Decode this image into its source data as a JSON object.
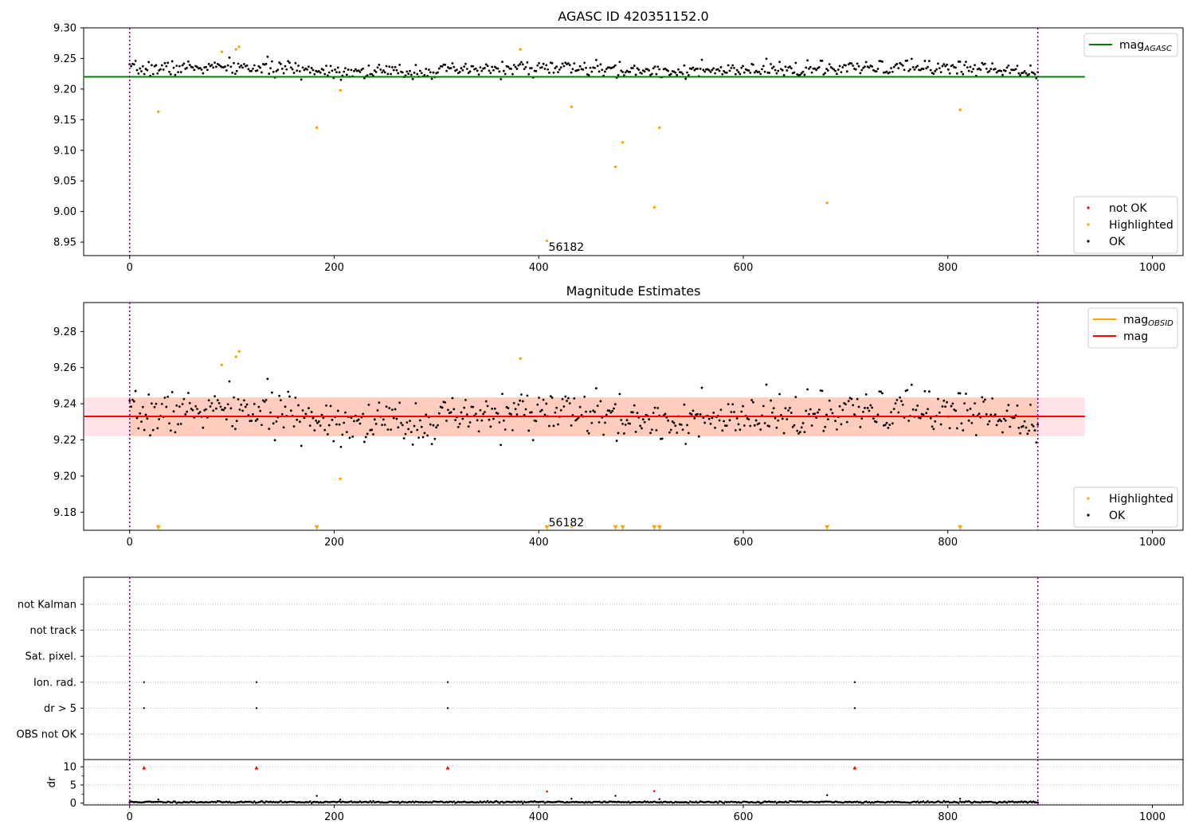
{
  "chart_data": [
    {
      "type": "scatter",
      "title": "AGASC ID 420351152.0",
      "xlim": [
        -45,
        1030
      ],
      "ylim": [
        8.928,
        9.3
      ],
      "x_ticks": [
        0,
        200,
        400,
        600,
        800,
        1000
      ],
      "y_ticks": [
        8.95,
        9.0,
        9.05,
        9.1,
        9.15,
        9.2,
        9.25,
        9.3
      ],
      "y_tick_labels": [
        "8.95",
        "9.00",
        "9.05",
        "9.10",
        "9.15",
        "9.20",
        "9.25",
        "9.30"
      ],
      "vlines": [
        0,
        888
      ],
      "hline": {
        "name": "mag",
        "name_sub": "AGASC",
        "y": 9.22,
        "x_range": [
          -45,
          934
        ],
        "color": "#008000"
      },
      "annotation": {
        "text": "56182",
        "x": 427,
        "y": 8.942
      },
      "legend_top": [
        {
          "label": "mag",
          "sub": "AGASC",
          "style": "line",
          "color": "#008000"
        }
      ],
      "legend_bottom": [
        {
          "label": "not OK",
          "style": "dot",
          "color": "#ff0000"
        },
        {
          "label": "Highlighted",
          "style": "dot",
          "color": "#ffa500"
        },
        {
          "label": "OK",
          "style": "dot",
          "color": "#000000"
        }
      ],
      "ok_series": {
        "x_start": 0,
        "x_end": 888,
        "n": 620,
        "baseline": 9.232,
        "noise": 0.0085,
        "color": "#000000"
      },
      "highlighted": {
        "color": "#ffa500",
        "points": [
          [
            28,
            9.163
          ],
          [
            90,
            9.261
          ],
          [
            104,
            9.265
          ],
          [
            107,
            9.269
          ],
          [
            183,
            9.137
          ],
          [
            206,
            9.198
          ],
          [
            382,
            9.265
          ],
          [
            408,
            8.952
          ],
          [
            432,
            9.171
          ],
          [
            475,
            9.073
          ],
          [
            482,
            9.113
          ],
          [
            513,
            9.007
          ],
          [
            518,
            9.137
          ],
          [
            682,
            9.014
          ],
          [
            812,
            9.166
          ]
        ]
      }
    },
    {
      "type": "scatter",
      "title": "Magnitude Estimates",
      "xlim": [
        -45,
        1030
      ],
      "ylim": [
        9.17,
        9.296
      ],
      "x_ticks": [
        0,
        200,
        400,
        600,
        800,
        1000
      ],
      "y_ticks": [
        9.18,
        9.2,
        9.22,
        9.24,
        9.26,
        9.28
      ],
      "y_tick_labels": [
        "9.18",
        "9.20",
        "9.22",
        "9.24",
        "9.26",
        "9.28"
      ],
      "vlines": [
        0,
        888
      ],
      "band_outer": {
        "y": [
          9.222,
          9.2435
        ],
        "x_range": [
          -45,
          934
        ]
      },
      "band_inner": {
        "y": [
          9.222,
          9.2435
        ],
        "x_range": [
          0,
          888
        ]
      },
      "mean_line": {
        "y": 9.233,
        "x_range": [
          -45,
          934
        ],
        "color": "#ff0000"
      },
      "annotation": {
        "text": "56182",
        "x": 427,
        "y": 9.1745
      },
      "markers_bottom": {
        "y": 9.1715,
        "x": [
          28,
          183,
          408,
          432,
          475,
          482,
          513,
          518,
          682,
          812
        ],
        "small": [
          432
        ],
        "color": "#ffa500"
      },
      "legend_top": [
        {
          "label": "mag",
          "sub": "OBSID",
          "style": "line",
          "color": "#ffa500"
        },
        {
          "label": "mag",
          "style": "line",
          "color": "#ff0000"
        }
      ],
      "legend_bottom": [
        {
          "label": "Highlighted",
          "style": "dot",
          "color": "#ffa500"
        },
        {
          "label": "OK",
          "style": "dot",
          "color": "#000000"
        }
      ],
      "ok_series": {
        "x_start": 0,
        "x_end": 888,
        "n": 620,
        "baseline": 9.233,
        "noise": 0.0085,
        "color": "#000000"
      },
      "highlighted": {
        "color": "#ffa500",
        "points": [
          [
            90,
            9.2615
          ],
          [
            104,
            9.266
          ],
          [
            107,
            9.269
          ],
          [
            206,
            9.1985
          ],
          [
            382,
            9.265
          ]
        ]
      }
    },
    {
      "type": "scatter",
      "title": "",
      "xlim": [
        -45,
        1030
      ],
      "flag_rows": [
        "not Kalman",
        "not track",
        "Sat. pixel.",
        "Ion. rad.",
        "dr > 5",
        "OBS not OK"
      ],
      "flag_points": {
        "Ion. rad.": [
          14,
          124,
          311,
          709
        ],
        "dr > 5": [
          14,
          124,
          311,
          709
        ]
      },
      "vlines": [
        0,
        888
      ]
    },
    {
      "type": "scatter",
      "title": "",
      "ylabel": "dr",
      "xlim": [
        -45,
        1030
      ],
      "ylim": [
        -0.5,
        12
      ],
      "x_ticks": [
        0,
        200,
        400,
        600,
        800,
        1000
      ],
      "y_ticks": [
        0,
        5,
        10
      ],
      "y_tick_labels": [
        "0",
        "5",
        "10"
      ],
      "vlines": [
        0,
        888
      ],
      "dr_series": {
        "x_start": 0,
        "x_end": 888,
        "n": 620,
        "baseline": 0.3,
        "noise": 0.18
      },
      "dr_outliers": [
        [
          28,
          1.0
        ],
        [
          183,
          2.0
        ],
        [
          206,
          1.0
        ],
        [
          432,
          1.2
        ],
        [
          475,
          2.0
        ],
        [
          518,
          1.1
        ],
        [
          682,
          2.2
        ],
        [
          812,
          1.2
        ]
      ],
      "dr_red": [
        [
          14,
          9.7
        ],
        [
          124,
          9.7
        ],
        [
          311,
          9.7
        ],
        [
          408,
          3.2
        ],
        [
          513,
          3.3
        ],
        [
          709,
          9.7
        ]
      ]
    }
  ]
}
